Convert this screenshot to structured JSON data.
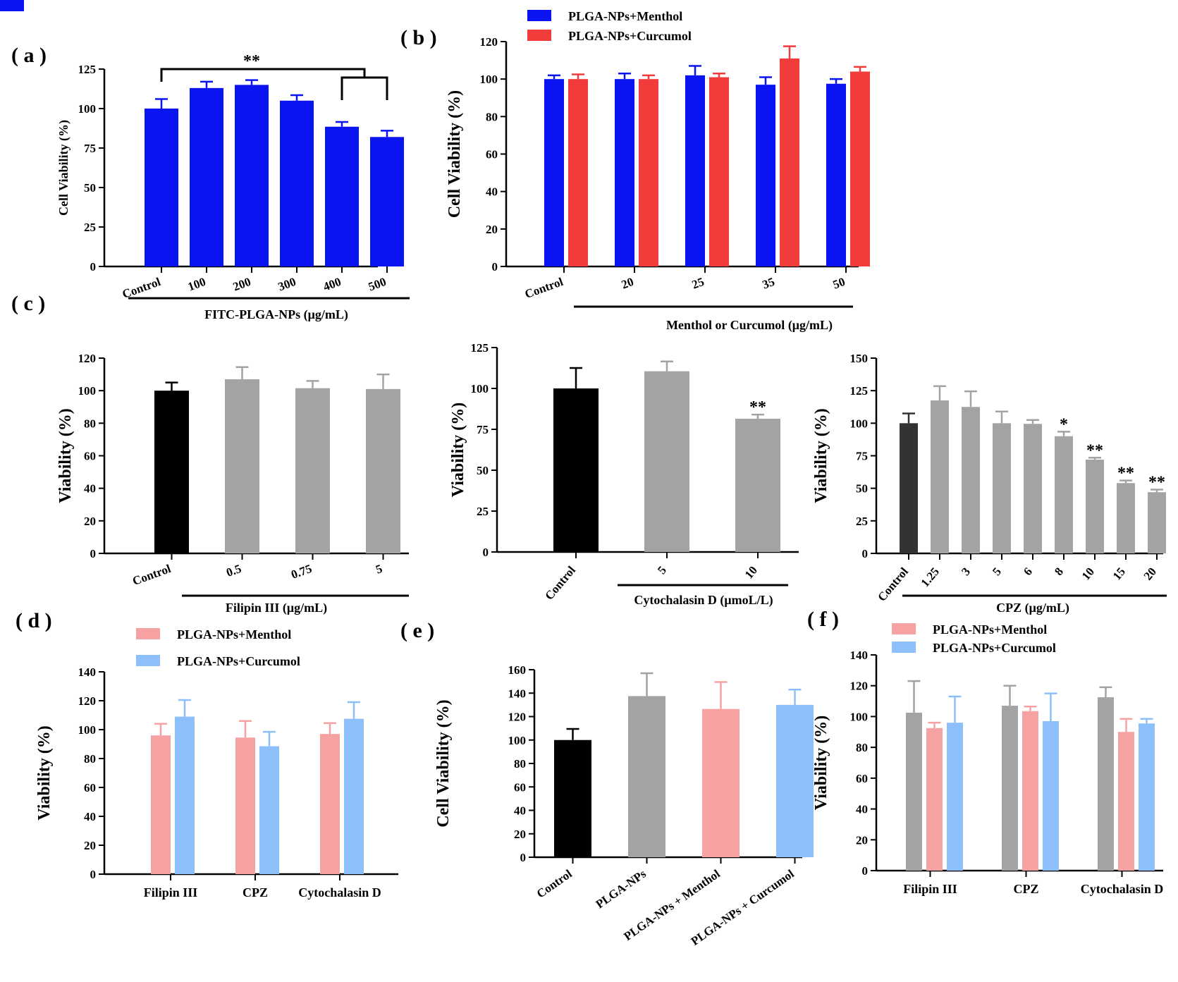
{
  "figure": {
    "panel_labels": [
      "( a )",
      "( b )",
      "( c )",
      "( d )",
      "( e )",
      "( f )"
    ]
  },
  "colors": {
    "blue": "#0A14F0",
    "red": "#F23B3B",
    "black": "#000000",
    "dark_gray": "#333333",
    "gray": "#A3A3A6",
    "pink": "#F6A2A2",
    "light_blue": "#8DC0FB"
  },
  "chart_data": [
    {
      "id": "a",
      "type": "bar",
      "categories": [
        "Control",
        "100",
        "200",
        "300",
        "400",
        "500"
      ],
      "series": [
        {
          "name": "FITC-PLGA-NPs",
          "values": [
            100,
            113,
            115,
            105,
            88.5,
            82
          ],
          "errors": [
            6,
            4,
            3,
            3.5,
            3,
            4
          ],
          "color": "#0A14F0"
        }
      ],
      "ylim": [
        0,
        125
      ],
      "yticks": [
        0,
        25,
        50,
        75,
        100,
        125
      ],
      "ylabel": "Cell Viability (%)",
      "xlabel": "FITC-PLGA-NPs (μg/mL)",
      "significance": [
        {
          "label": "**",
          "from": 0,
          "to": 4
        }
      ]
    },
    {
      "id": "b",
      "type": "bar",
      "categories": [
        "Control",
        "20",
        "25",
        "35",
        "50"
      ],
      "series": [
        {
          "name": "PLGA-NPs+Menthol",
          "values": [
            100,
            100,
            102,
            97,
            97.5
          ],
          "errors": [
            2,
            3,
            5,
            4,
            2.5
          ],
          "color": "#0A14F0"
        },
        {
          "name": "PLGA-NPs+Curcumol",
          "values": [
            100,
            100,
            101,
            111,
            104
          ],
          "errors": [
            2.5,
            2,
            2,
            6.5,
            2.5
          ],
          "color": "#F23B3B"
        }
      ],
      "ylim": [
        0,
        120
      ],
      "yticks": [
        0,
        20,
        40,
        60,
        80,
        100,
        120
      ],
      "ylabel": "Cell Viability (%)",
      "xlabel": "Menthol or Curcumol (μg/mL)"
    },
    {
      "id": "c1",
      "type": "bar",
      "categories": [
        "Control",
        "0.5",
        "0.75",
        "5"
      ],
      "values": [
        100,
        107,
        101.5,
        101
      ],
      "errors": [
        5,
        7.5,
        4.5,
        9
      ],
      "colors": [
        "#000000",
        "#A3A3A6",
        "#A3A3A6",
        "#A3A3A6"
      ],
      "ylim": [
        0,
        120
      ],
      "yticks": [
        0,
        20,
        40,
        60,
        80,
        100,
        120
      ],
      "ylabel": "Viability  (%)",
      "xlabel": "Filipin III (μg/mL)"
    },
    {
      "id": "c2",
      "type": "bar",
      "categories": [
        "Control",
        "5",
        "10"
      ],
      "values": [
        100,
        110.5,
        81.5
      ],
      "errors": [
        12.5,
        6,
        2.5
      ],
      "colors": [
        "#000000",
        "#A3A3A6",
        "#A3A3A6"
      ],
      "ylim": [
        0,
        125
      ],
      "yticks": [
        0,
        25,
        50,
        75,
        100,
        125
      ],
      "ylabel": "Viability (%)",
      "xlabel": "Cytochalasin D (μmoL/L)",
      "annotations": [
        "",
        "",
        "**"
      ]
    },
    {
      "id": "c3",
      "type": "bar",
      "categories": [
        "Control",
        "1.25",
        "3",
        "5",
        "6",
        "8",
        "10",
        "15",
        "20"
      ],
      "values": [
        100,
        117.5,
        112.5,
        100,
        99.5,
        90,
        72,
        54,
        47
      ],
      "errors": [
        7.5,
        11,
        12,
        9,
        3,
        3.5,
        1.5,
        2,
        2
      ],
      "colors": [
        "#333333",
        "#A3A3A6",
        "#A3A3A6",
        "#A3A3A6",
        "#A3A3A6",
        "#A3A3A6",
        "#A3A3A6",
        "#A3A3A6",
        "#A3A3A6"
      ],
      "ylim": [
        0,
        150
      ],
      "yticks": [
        0,
        25,
        50,
        75,
        100,
        125,
        150
      ],
      "ylabel": "Viability  (%)",
      "xlabel": "CPZ (μg/mL)",
      "annotations": [
        "",
        "",
        "",
        "",
        "",
        "*",
        "**",
        "**",
        "**"
      ]
    },
    {
      "id": "d",
      "type": "bar",
      "categories": [
        "Filipin III",
        "CPZ",
        "Cytochalasin D"
      ],
      "series": [
        {
          "name": "PLGA-NPs+Menthol",
          "values": [
            96,
            94.5,
            97
          ],
          "errors": [
            8,
            11.5,
            7.5
          ],
          "color": "#F6A2A2"
        },
        {
          "name": "PLGA-NPs+Curcumol",
          "values": [
            109,
            88.5,
            107.5
          ],
          "errors": [
            11.5,
            10,
            11.5
          ],
          "color": "#8DC0FB"
        }
      ],
      "ylim": [
        0,
        140
      ],
      "yticks": [
        0,
        20,
        40,
        60,
        80,
        100,
        120,
        140
      ],
      "ylabel": "Viability (%)"
    },
    {
      "id": "e",
      "type": "bar",
      "categories": [
        "Control",
        "PLGA-NPs",
        "PLGA-NPs + Menthol",
        "PLGA-NPs + Curcumol"
      ],
      "values": [
        100,
        137.5,
        126.5,
        130
      ],
      "errors": [
        9.5,
        19.5,
        23,
        13
      ],
      "colors": [
        "#000000",
        "#A3A3A6",
        "#F6A2A2",
        "#8DC0FB"
      ],
      "ylim": [
        0,
        160
      ],
      "yticks": [
        0,
        20,
        40,
        60,
        80,
        100,
        120,
        140,
        160
      ],
      "ylabel": "Cell Viability (%)"
    },
    {
      "id": "f",
      "type": "bar",
      "categories": [
        "Filipin III",
        "CPZ",
        "Cytochalasin D"
      ],
      "series": [
        {
          "name": "",
          "values": [
            102.5,
            107,
            112.5
          ],
          "errors": [
            20.5,
            13,
            6.5
          ],
          "color": "#A3A3A6"
        },
        {
          "name": "PLGA-NPs+Menthol",
          "values": [
            92.5,
            103.5,
            90
          ],
          "errors": [
            3.5,
            3,
            8.5
          ],
          "color": "#F6A2A2"
        },
        {
          "name": "PLGA-NPs+Curcumol",
          "values": [
            96,
            97,
            95.5
          ],
          "errors": [
            17,
            18,
            3
          ],
          "color": "#8DC0FB"
        }
      ],
      "ylim": [
        0,
        140
      ],
      "yticks": [
        0,
        20,
        40,
        60,
        80,
        100,
        120,
        140
      ],
      "ylabel": "Viability (%)"
    }
  ]
}
